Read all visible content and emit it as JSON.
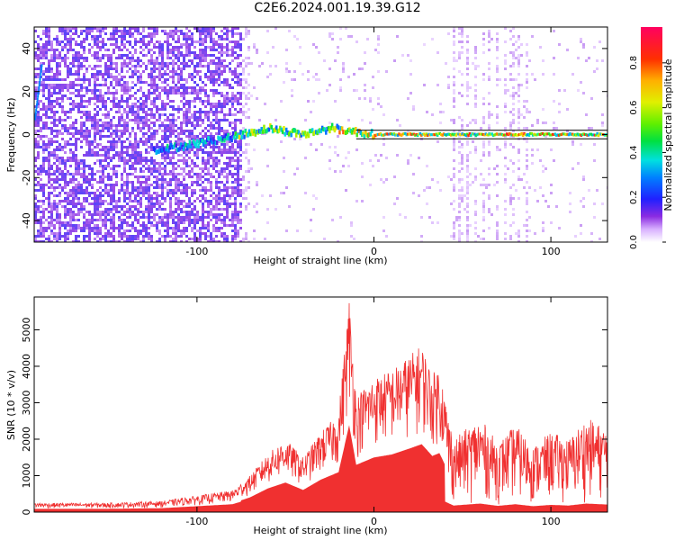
{
  "title": "C2E6.2024.001.19.39.G12",
  "chart_data": [
    {
      "type": "heatmap",
      "xlabel": "Height of straight line (km)",
      "ylabel": "Frequency (Hz)",
      "xlim": [
        -192,
        132
      ],
      "ylim": [
        -50,
        50
      ],
      "xticks": [
        -100,
        0,
        100
      ],
      "yticks": [
        -40,
        -20,
        0,
        20,
        40
      ],
      "colorbar": {
        "label": "Normalized spectral amplitude",
        "range": [
          0,
          0.96
        ],
        "ticks": [
          0.0,
          0.2,
          0.4,
          0.6,
          0.8
        ]
      },
      "reference_lines": [
        2,
        -2
      ],
      "signal_track": [
        {
          "x": -120,
          "freq": -7
        },
        {
          "x": -100,
          "freq": -4
        },
        {
          "x": -80,
          "freq": -1
        },
        {
          "x": -60,
          "freq": 3
        },
        {
          "x": -40,
          "freq": 0
        },
        {
          "x": -25,
          "freq": 3
        },
        {
          "x": 0,
          "freq": 0
        },
        {
          "x": 50,
          "freq": 0
        },
        {
          "x": 132,
          "freq": 0
        }
      ],
      "grid": false
    },
    {
      "type": "line",
      "xlabel": "Height of straight line (km)",
      "ylabel": "SNR (10 * v/v)",
      "xlim": [
        -192,
        132
      ],
      "ylim": [
        0,
        5900
      ],
      "xticks": [
        -100,
        0,
        100
      ],
      "yticks": [
        0,
        1000,
        2000,
        3000,
        4000,
        5000
      ],
      "series_color": "#f03030",
      "envelope": [
        {
          "x": -192,
          "y": 250
        },
        {
          "x": -150,
          "y": 250
        },
        {
          "x": -120,
          "y": 300
        },
        {
          "x": -100,
          "y": 450
        },
        {
          "x": -80,
          "y": 600
        },
        {
          "x": -70,
          "y": 1000
        },
        {
          "x": -60,
          "y": 1600
        },
        {
          "x": -50,
          "y": 2000
        },
        {
          "x": -40,
          "y": 1500
        },
        {
          "x": -30,
          "y": 2200
        },
        {
          "x": -20,
          "y": 2700
        },
        {
          "x": -14,
          "y": 5900
        },
        {
          "x": -10,
          "y": 3200
        },
        {
          "x": 0,
          "y": 3700
        },
        {
          "x": 10,
          "y": 3900
        },
        {
          "x": 20,
          "y": 4300
        },
        {
          "x": 27,
          "y": 4600
        },
        {
          "x": 33,
          "y": 3800
        },
        {
          "x": 37,
          "y": 4000
        },
        {
          "x": 45,
          "y": 2000
        },
        {
          "x": 60,
          "y": 2600
        },
        {
          "x": 70,
          "y": 1900
        },
        {
          "x": 80,
          "y": 2400
        },
        {
          "x": 90,
          "y": 1800
        },
        {
          "x": 100,
          "y": 2200
        },
        {
          "x": 110,
          "y": 2000
        },
        {
          "x": 120,
          "y": 2600
        },
        {
          "x": 132,
          "y": 2300
        }
      ],
      "grid": false
    }
  ]
}
